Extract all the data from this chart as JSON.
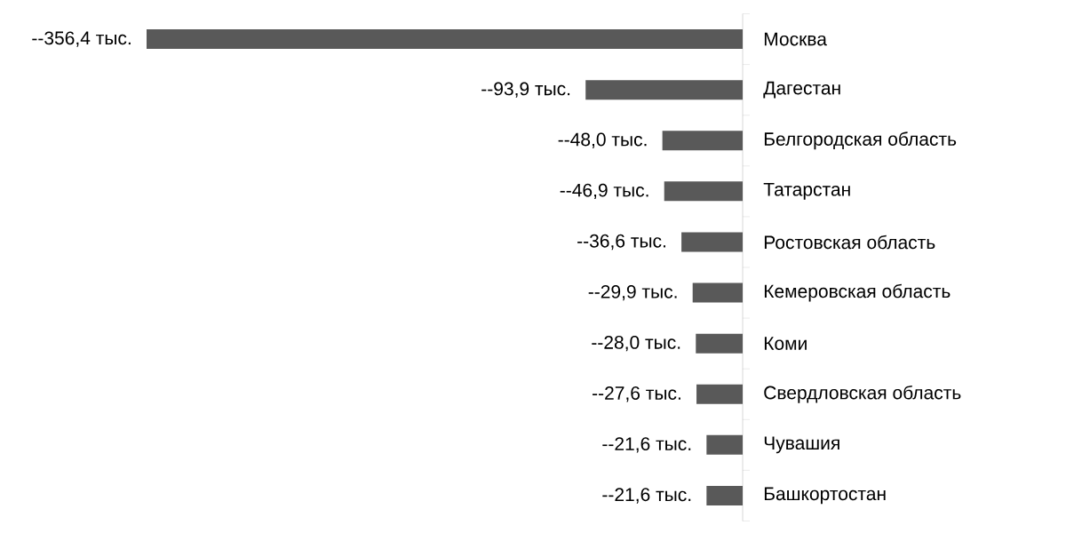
{
  "chart_data": {
    "type": "bar",
    "orientation": "horizontal",
    "categories": [
      "Москва",
      "Дагестан",
      "Белгородская область",
      "Татарстан",
      "Ростовская область",
      "Кемеровская область",
      "Коми",
      "Свердловская область",
      "Чувашия",
      "Башкортостан"
    ],
    "values": [
      -356.4,
      -93.9,
      -48.0,
      -46.9,
      -36.6,
      -29.9,
      -28.0,
      -27.6,
      -21.6,
      -21.6
    ],
    "value_labels": [
      "--356,4 тыс.",
      "--93,9 тыс.",
      "--48,0 тыс.",
      "--46,9 тыс.",
      "--36,6 тыс.",
      "--29,9 тыс.",
      "--28,0 тыс.",
      "--27,6 тыс.",
      "--21,6 тыс.",
      "--21,6 тыс."
    ],
    "color": "#595959"
  }
}
